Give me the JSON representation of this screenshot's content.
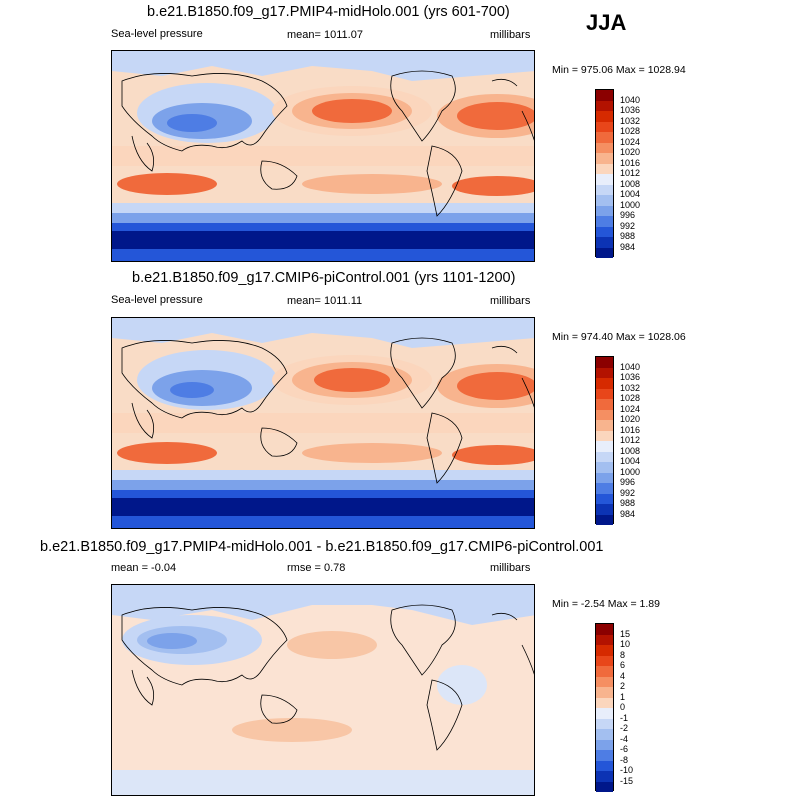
{
  "season": "JJA",
  "panels": [
    {
      "id": "p1",
      "title": "b.e21.B1850.f09_g17.PMIP4-midHolo.001 (yrs 601-700)",
      "left_label": "Sea-level pressure",
      "center_label": "mean= 1011.07",
      "right_label": "millibars",
      "minmax": "Min = 975.06 Max = 1028.94",
      "colorbar": {
        "labels": [
          "1040",
          "1036",
          "1032",
          "1028",
          "1024",
          "1020",
          "1016",
          "1012",
          "1008",
          "1004",
          "1000",
          "996",
          "992",
          "988",
          "984"
        ],
        "colors": [
          "#8b0000",
          "#b31200",
          "#d62a00",
          "#e8461a",
          "#f06a3c",
          "#f58f62",
          "#f8b48e",
          "#fbd6bd",
          "#e8eefb",
          "#c6d7f6",
          "#a3bff0",
          "#7ca2ea",
          "#4e7de4",
          "#2456d8",
          "#0c33b4",
          "#00178a"
        ]
      }
    },
    {
      "id": "p2",
      "title": "b.e21.B1850.f09_g17.CMIP6-piControl.001 (yrs 1101-1200)",
      "left_label": "Sea-level pressure",
      "center_label": "mean= 1011.11",
      "right_label": "millibars",
      "minmax": "Min = 974.40 Max = 1028.06",
      "colorbar": {
        "labels": [
          "1040",
          "1036",
          "1032",
          "1028",
          "1024",
          "1020",
          "1016",
          "1012",
          "1008",
          "1004",
          "1000",
          "996",
          "992",
          "988",
          "984"
        ],
        "colors": [
          "#8b0000",
          "#b31200",
          "#d62a00",
          "#e8461a",
          "#f06a3c",
          "#f58f62",
          "#f8b48e",
          "#fbd6bd",
          "#e8eefb",
          "#c6d7f6",
          "#a3bff0",
          "#7ca2ea",
          "#4e7de4",
          "#2456d8",
          "#0c33b4",
          "#00178a"
        ]
      }
    },
    {
      "id": "p3",
      "title": "b.e21.B1850.f09_g17.PMIP4-midHolo.001 - b.e21.B1850.f09_g17.CMIP6-piControl.001",
      "left_label": "mean =  -0.04",
      "center_label": "rmse =   0.78",
      "right_label": "millibars",
      "minmax": "Min =  -2.54 Max =   1.89",
      "colorbar": {
        "labels": [
          "15",
          "10",
          "8",
          "6",
          "4",
          "2",
          "1",
          "0",
          "-1",
          "-2",
          "-4",
          "-6",
          "-8",
          "-10",
          "-15"
        ],
        "colors": [
          "#8b0000",
          "#b31200",
          "#d62a00",
          "#e8461a",
          "#f06a3c",
          "#f58f62",
          "#f8b48e",
          "#fbd6bd",
          "#e8eefb",
          "#c6d7f6",
          "#a3bff0",
          "#7ca2ea",
          "#4e7de4",
          "#2456d8",
          "#0c33b4",
          "#00178a"
        ]
      }
    }
  ],
  "colors": {
    "ocean_neutral": "#f9dcc6",
    "diff_background": "#fbe3d3",
    "coastline": "#000000"
  }
}
